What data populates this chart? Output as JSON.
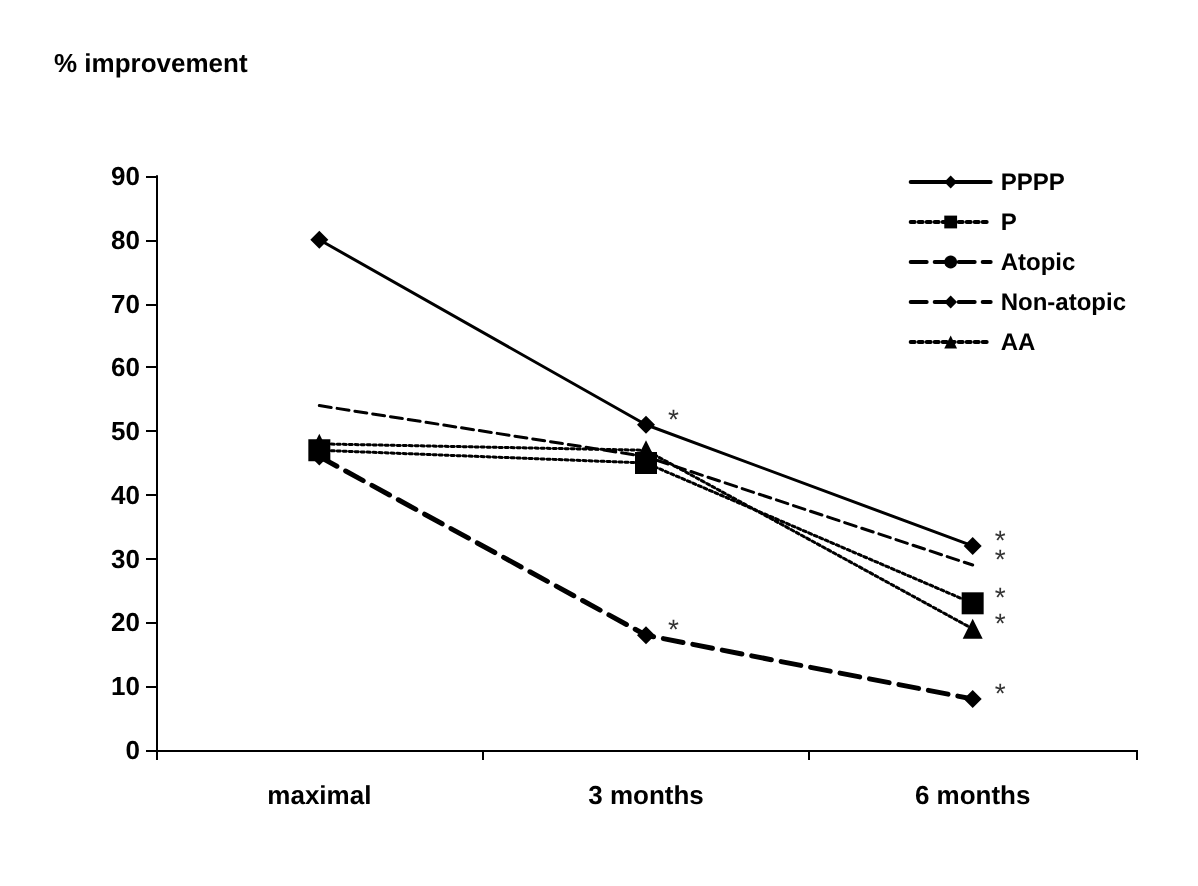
{
  "chart_data": {
    "type": "line",
    "ylabel": "% improvement",
    "categories": [
      "maximal",
      "3 months",
      "6 months"
    ],
    "series": [
      {
        "name": "PPPP",
        "color": "#000000",
        "values": [
          80,
          51,
          32
        ],
        "marker": "diamond",
        "line_style": "solid"
      },
      {
        "name": "P",
        "color": "#000000",
        "values": [
          47,
          45,
          23
        ],
        "marker": "square",
        "line_style": "dotted"
      },
      {
        "name": "Atopic",
        "color": "#000000",
        "values": [
          54,
          46,
          29
        ],
        "marker": "none",
        "line_style": "dashed"
      },
      {
        "name": "Non-atopic",
        "color": "#000000",
        "values": [
          46,
          18,
          8
        ],
        "marker": "diamond",
        "line_style": "dashed"
      },
      {
        "name": "AA",
        "color": "#000000",
        "values": [
          48,
          47,
          19
        ],
        "marker": "triangle",
        "line_style": "dotted"
      }
    ],
    "ylim": [
      0,
      90
    ],
    "yticks": [
      0,
      10,
      20,
      30,
      40,
      50,
      60,
      70,
      80,
      90
    ],
    "grid": false,
    "legend": "top right",
    "annotations": [
      {
        "text": "*",
        "x": "3 months",
        "y": 51
      },
      {
        "text": "*",
        "x": "3 months",
        "y": 18
      },
      {
        "text": "*",
        "x": "6 months",
        "y": 32
      },
      {
        "text": "*",
        "x": "6 months",
        "y": 29
      },
      {
        "text": "*",
        "x": "6 months",
        "y": 23
      },
      {
        "text": "*",
        "x": "6 months",
        "y": 19
      },
      {
        "text": "*",
        "x": "6 months",
        "y": 8
      }
    ]
  }
}
